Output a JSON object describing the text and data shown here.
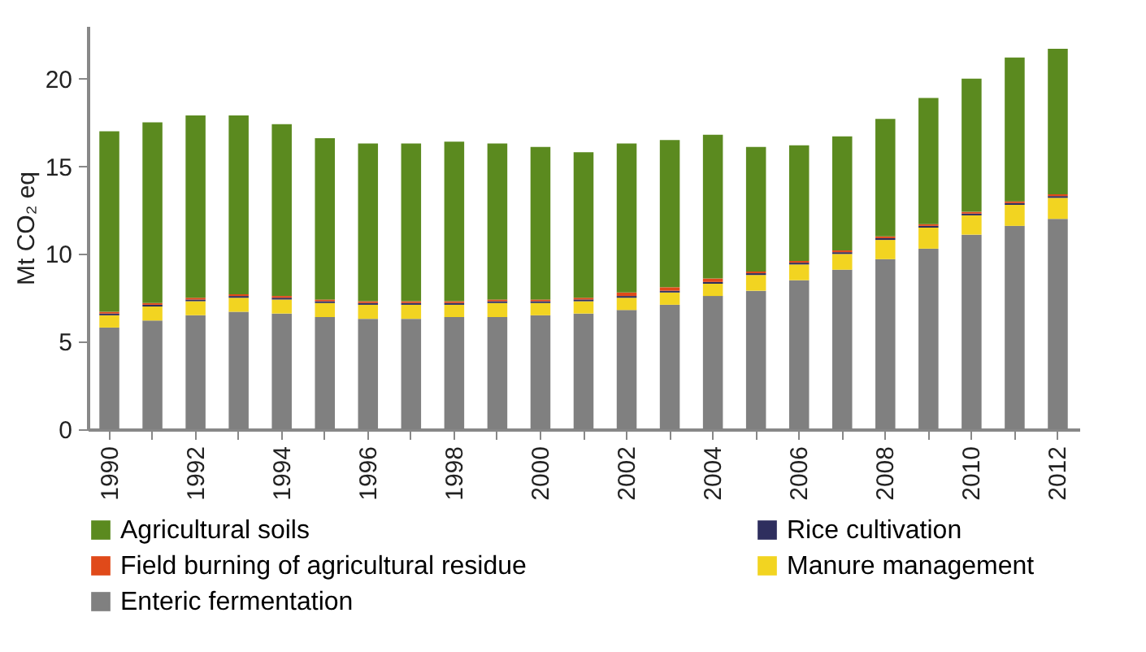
{
  "chart_data": {
    "type": "bar",
    "stacked": true,
    "ylabel": "Mt CO₂ eq",
    "categories": [
      "1990",
      null,
      "1992",
      null,
      "1994",
      null,
      "1996",
      null,
      "1998",
      null,
      "2000",
      null,
      "2002",
      null,
      "2004",
      null,
      "2006",
      null,
      "2008",
      null,
      "2010",
      null,
      "2012"
    ],
    "series": [
      {
        "name": "Enteric fermentation",
        "color": "#808080",
        "values": [
          5.8,
          6.2,
          6.5,
          6.7,
          6.6,
          6.4,
          6.3,
          6.3,
          6.4,
          6.4,
          6.5,
          6.6,
          6.8,
          7.1,
          7.6,
          7.9,
          8.5,
          9.1,
          9.7,
          10.3,
          11.1,
          11.6,
          12.0
        ]
      },
      {
        "name": "Manure management",
        "color": "#f2d421",
        "values": [
          0.7,
          0.8,
          0.8,
          0.8,
          0.8,
          0.8,
          0.8,
          0.8,
          0.7,
          0.8,
          0.7,
          0.7,
          0.7,
          0.7,
          0.7,
          0.9,
          0.9,
          0.9,
          1.1,
          1.2,
          1.1,
          1.2,
          1.2
        ]
      },
      {
        "name": "Rice cultivation",
        "color": "#2e2e5e",
        "values": [
          0.1,
          0.1,
          0.1,
          0.1,
          0.1,
          0.1,
          0.1,
          0.1,
          0.1,
          0.1,
          0.1,
          0.1,
          0.1,
          0.1,
          0.1,
          0.1,
          0.1,
          0.1,
          0.1,
          0.1,
          0.1,
          0.1,
          0.1
        ]
      },
      {
        "name": "Field burning of agricultural residue",
        "color": "#e04a1a",
        "values": [
          0.1,
          0.1,
          0.1,
          0.1,
          0.1,
          0.1,
          0.1,
          0.1,
          0.1,
          0.1,
          0.1,
          0.1,
          0.2,
          0.2,
          0.2,
          0.1,
          0.1,
          0.1,
          0.1,
          0.1,
          0.1,
          0.1,
          0.1
        ]
      },
      {
        "name": "Agricultural soils",
        "color": "#5b8a1f",
        "values": [
          10.3,
          10.3,
          10.4,
          10.2,
          9.8,
          9.2,
          9.0,
          9.0,
          9.1,
          8.9,
          8.7,
          8.3,
          8.5,
          8.4,
          8.2,
          7.1,
          6.6,
          6.5,
          6.7,
          7.2,
          7.6,
          8.2,
          8.3
        ]
      }
    ],
    "ylim": [
      0,
      23
    ],
    "yticks": [
      0,
      5,
      10,
      15,
      20
    ],
    "grid": false,
    "legend": "bottom"
  }
}
